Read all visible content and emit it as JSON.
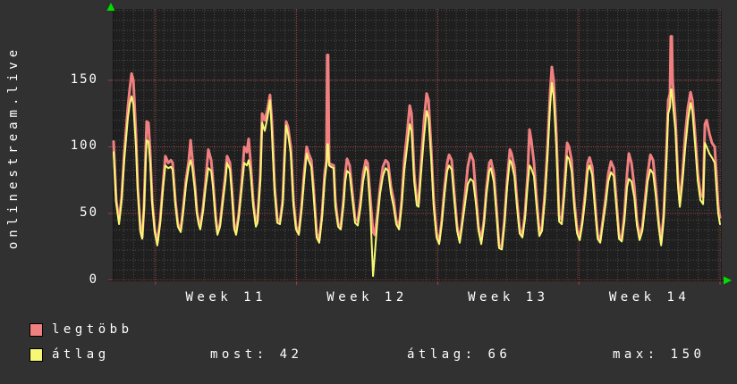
{
  "title": "onlinestream.live",
  "colors": {
    "background": "#313131",
    "plot_background": "#1f1f1f",
    "grid_minor": "#4d4d4d",
    "grid_major": "#9b4040",
    "axis": "#151515",
    "arrow": "#00dd00",
    "text": "#ffffff",
    "legtobb": "#f08080",
    "atlag": "#f7f774"
  },
  "legend": [
    {
      "label": "legtöbb",
      "color": "#f08080"
    },
    {
      "label": "átlag",
      "color": "#f7f774"
    }
  ],
  "stats": [
    {
      "label": "most",
      "value": "42",
      "text": "most: 42"
    },
    {
      "label": "átlag",
      "value": "66",
      "text": "átlag: 66"
    },
    {
      "label": "max",
      "value": "150",
      "text": "max: 150"
    }
  ],
  "chart_data": {
    "type": "line",
    "title": "onlinestream.live",
    "x_unit": "days",
    "x_range_days": [
      0,
      30.08
    ],
    "week_boundaries_days": [
      2.08,
      9.08,
      16.08,
      23.08,
      30.08
    ],
    "x_tick_labels": [
      "Week 11",
      "Week 12",
      "Week 13",
      "Week 14"
    ],
    "y_ticks": [
      0,
      50,
      100,
      150
    ],
    "y_tick_labels": [
      "0",
      "50",
      "100",
      "150"
    ],
    "ylim": [
      0,
      203
    ],
    "grid": {
      "minor_x_days": 0.5,
      "minor_y": 7.5,
      "major_y": 50,
      "minor_on": true
    },
    "legend_position": "bottom-left",
    "series_names": [
      "legtöbb",
      "átlag"
    ],
    "points_format": "[day, legtobb, atlag]",
    "points": [
      [
        0,
        104,
        96
      ],
      [
        0.13,
        60,
        58
      ],
      [
        0.27,
        45,
        42
      ],
      [
        0.4,
        62,
        60
      ],
      [
        0.53,
        95,
        90
      ],
      [
        0.71,
        130,
        122
      ],
      [
        0.8,
        143,
        132
      ],
      [
        0.89,
        155,
        138
      ],
      [
        0.98,
        150,
        132
      ],
      [
        1.11,
        110,
        100
      ],
      [
        1.2,
        70,
        68
      ],
      [
        1.33,
        38,
        36
      ],
      [
        1.42,
        32,
        31
      ],
      [
        1.51,
        55,
        53
      ],
      [
        1.6,
        100,
        92
      ],
      [
        1.64,
        119,
        105
      ],
      [
        1.73,
        118,
        104
      ],
      [
        1.82,
        95,
        88
      ],
      [
        1.91,
        60,
        58
      ],
      [
        2.04,
        38,
        36
      ],
      [
        2.17,
        28,
        26
      ],
      [
        2.31,
        45,
        43
      ],
      [
        2.44,
        70,
        67
      ],
      [
        2.57,
        93,
        86
      ],
      [
        2.71,
        88,
        84
      ],
      [
        2.84,
        90,
        85
      ],
      [
        2.93,
        88,
        83
      ],
      [
        3.06,
        60,
        57
      ],
      [
        3.19,
        42,
        40
      ],
      [
        3.33,
        38,
        36
      ],
      [
        3.46,
        55,
        52
      ],
      [
        3.59,
        75,
        71
      ],
      [
        3.73,
        90,
        85
      ],
      [
        3.82,
        105,
        90
      ],
      [
        3.9,
        92,
        85
      ],
      [
        4.04,
        70,
        66
      ],
      [
        4.13,
        52,
        50
      ],
      [
        4.22,
        44,
        42
      ],
      [
        4.3,
        40,
        38
      ],
      [
        4.44,
        55,
        52
      ],
      [
        4.57,
        75,
        70
      ],
      [
        4.7,
        98,
        84
      ],
      [
        4.84,
        90,
        82
      ],
      [
        4.93,
        75,
        70
      ],
      [
        5.06,
        48,
        45
      ],
      [
        5.15,
        36,
        34
      ],
      [
        5.28,
        42,
        40
      ],
      [
        5.41,
        60,
        57
      ],
      [
        5.55,
        80,
        75
      ],
      [
        5.63,
        93,
        88
      ],
      [
        5.77,
        88,
        83
      ],
      [
        5.86,
        70,
        66
      ],
      [
        5.99,
        40,
        38
      ],
      [
        6.08,
        36,
        34
      ],
      [
        6.21,
        50,
        47
      ],
      [
        6.35,
        72,
        68
      ],
      [
        6.48,
        100,
        88
      ],
      [
        6.61,
        96,
        86
      ],
      [
        6.7,
        106,
        90
      ],
      [
        6.79,
        90,
        82
      ],
      [
        6.92,
        60,
        56
      ],
      [
        7.06,
        42,
        40
      ],
      [
        7.14,
        45,
        43
      ],
      [
        7.28,
        80,
        75
      ],
      [
        7.37,
        125,
        118
      ],
      [
        7.5,
        120,
        112
      ],
      [
        7.63,
        128,
        122
      ],
      [
        7.76,
        139,
        135
      ],
      [
        7.85,
        120,
        112
      ],
      [
        7.99,
        70,
        65
      ],
      [
        8.12,
        46,
        43
      ],
      [
        8.25,
        44,
        42
      ],
      [
        8.39,
        60,
        57
      ],
      [
        8.47,
        90,
        85
      ],
      [
        8.56,
        119,
        116
      ],
      [
        8.65,
        115,
        110
      ],
      [
        8.79,
        100,
        95
      ],
      [
        8.92,
        60,
        56
      ],
      [
        9.05,
        40,
        38
      ],
      [
        9.19,
        36,
        34
      ],
      [
        9.32,
        55,
        52
      ],
      [
        9.45,
        80,
        75
      ],
      [
        9.58,
        100,
        95
      ],
      [
        9.67,
        95,
        90
      ],
      [
        9.81,
        90,
        85
      ],
      [
        9.94,
        65,
        60
      ],
      [
        10.07,
        35,
        32
      ],
      [
        10.2,
        30,
        28
      ],
      [
        10.34,
        50,
        47
      ],
      [
        10.47,
        80,
        75
      ],
      [
        10.56,
        90,
        86
      ],
      [
        10.6,
        169,
        102
      ],
      [
        10.64,
        169,
        102
      ],
      [
        10.69,
        88,
        86
      ],
      [
        10.78,
        87,
        85
      ],
      [
        10.92,
        86,
        84
      ],
      [
        11,
        60,
        55
      ],
      [
        11.14,
        42,
        40
      ],
      [
        11.27,
        40,
        38
      ],
      [
        11.4,
        60,
        56
      ],
      [
        11.49,
        80,
        74
      ],
      [
        11.58,
        91,
        82
      ],
      [
        11.71,
        86,
        80
      ],
      [
        11.85,
        65,
        60
      ],
      [
        11.98,
        46,
        43
      ],
      [
        12.11,
        44,
        41
      ],
      [
        12.25,
        60,
        55
      ],
      [
        12.38,
        80,
        74
      ],
      [
        12.51,
        90,
        85
      ],
      [
        12.6,
        88,
        82
      ],
      [
        12.74,
        60,
        50
      ],
      [
        12.87,
        36,
        3
      ],
      [
        12.96,
        34,
        20
      ],
      [
        13.09,
        50,
        45
      ],
      [
        13.22,
        70,
        65
      ],
      [
        13.36,
        85,
        78
      ],
      [
        13.49,
        90,
        84
      ],
      [
        13.62,
        88,
        82
      ],
      [
        13.76,
        70,
        65
      ],
      [
        13.89,
        60,
        55
      ],
      [
        14.02,
        45,
        42
      ],
      [
        14.16,
        40,
        38
      ],
      [
        14.29,
        60,
        56
      ],
      [
        14.42,
        90,
        82
      ],
      [
        14.56,
        110,
        100
      ],
      [
        14.69,
        131,
        117
      ],
      [
        14.78,
        125,
        112
      ],
      [
        14.91,
        80,
        74
      ],
      [
        15.04,
        60,
        56
      ],
      [
        15.13,
        58,
        55
      ],
      [
        15.26,
        90,
        82
      ],
      [
        15.4,
        120,
        108
      ],
      [
        15.53,
        140,
        127
      ],
      [
        15.62,
        135,
        122
      ],
      [
        15.75,
        100,
        92
      ],
      [
        15.88,
        60,
        55
      ],
      [
        16.02,
        35,
        32
      ],
      [
        16.15,
        29,
        27
      ],
      [
        16.28,
        45,
        42
      ],
      [
        16.42,
        70,
        65
      ],
      [
        16.55,
        88,
        82
      ],
      [
        16.64,
        94,
        86
      ],
      [
        16.77,
        90,
        83
      ],
      [
        16.9,
        65,
        60
      ],
      [
        17.04,
        40,
        37
      ],
      [
        17.17,
        30,
        28
      ],
      [
        17.3,
        45,
        42
      ],
      [
        17.44,
        65,
        58
      ],
      [
        17.57,
        85,
        72
      ],
      [
        17.7,
        95,
        76
      ],
      [
        17.84,
        90,
        74
      ],
      [
        17.97,
        65,
        58
      ],
      [
        18.1,
        40,
        37
      ],
      [
        18.24,
        30,
        27
      ],
      [
        18.37,
        45,
        42
      ],
      [
        18.5,
        70,
        65
      ],
      [
        18.64,
        88,
        82
      ],
      [
        18.72,
        90,
        84
      ],
      [
        18.86,
        80,
        74
      ],
      [
        18.99,
        55,
        50
      ],
      [
        19.12,
        26,
        24
      ],
      [
        19.26,
        25,
        23
      ],
      [
        19.39,
        45,
        42
      ],
      [
        19.52,
        75,
        70
      ],
      [
        19.66,
        98,
        90
      ],
      [
        19.74,
        95,
        88
      ],
      [
        19.88,
        85,
        78
      ],
      [
        20.01,
        60,
        55
      ],
      [
        20.14,
        38,
        35
      ],
      [
        20.28,
        34,
        32
      ],
      [
        20.41,
        50,
        46
      ],
      [
        20.54,
        80,
        72
      ],
      [
        20.63,
        113,
        86
      ],
      [
        20.72,
        105,
        84
      ],
      [
        20.85,
        88,
        78
      ],
      [
        20.99,
        60,
        54
      ],
      [
        21.12,
        36,
        33
      ],
      [
        21.25,
        40,
        37
      ],
      [
        21.39,
        65,
        60
      ],
      [
        21.52,
        100,
        92
      ],
      [
        21.65,
        140,
        130
      ],
      [
        21.74,
        160,
        148
      ],
      [
        21.83,
        150,
        138
      ],
      [
        21.96,
        110,
        100
      ],
      [
        22.1,
        48,
        44
      ],
      [
        22.23,
        45,
        42
      ],
      [
        22.36,
        70,
        64
      ],
      [
        22.5,
        103,
        93
      ],
      [
        22.59,
        100,
        91
      ],
      [
        22.72,
        90,
        82
      ],
      [
        22.85,
        60,
        55
      ],
      [
        22.99,
        38,
        35
      ],
      [
        23.12,
        32,
        30
      ],
      [
        23.25,
        45,
        42
      ],
      [
        23.39,
        65,
        60
      ],
      [
        23.52,
        88,
        82
      ],
      [
        23.61,
        92,
        86
      ],
      [
        23.74,
        85,
        79
      ],
      [
        23.87,
        60,
        55
      ],
      [
        24.01,
        34,
        31
      ],
      [
        24.14,
        30,
        28
      ],
      [
        24.27,
        45,
        42
      ],
      [
        24.41,
        62,
        57
      ],
      [
        24.54,
        80,
        74
      ],
      [
        24.67,
        89,
        81
      ],
      [
        24.81,
        84,
        78
      ],
      [
        24.94,
        60,
        55
      ],
      [
        25.07,
        34,
        31
      ],
      [
        25.21,
        31,
        29
      ],
      [
        25.34,
        50,
        45
      ],
      [
        25.47,
        80,
        70
      ],
      [
        25.56,
        95,
        76
      ],
      [
        25.69,
        88,
        74
      ],
      [
        25.83,
        70,
        62
      ],
      [
        25.96,
        45,
        41
      ],
      [
        26.09,
        33,
        30
      ],
      [
        26.23,
        40,
        37
      ],
      [
        26.36,
        60,
        55
      ],
      [
        26.49,
        80,
        74
      ],
      [
        26.63,
        94,
        83
      ],
      [
        26.76,
        90,
        80
      ],
      [
        26.89,
        70,
        64
      ],
      [
        27.03,
        45,
        41
      ],
      [
        27.16,
        28,
        26
      ],
      [
        27.29,
        50,
        46
      ],
      [
        27.43,
        100,
        92
      ],
      [
        27.51,
        135,
        125
      ],
      [
        27.6,
        140,
        130
      ],
      [
        27.64,
        183,
        143
      ],
      [
        27.69,
        183,
        143
      ],
      [
        27.73,
        150,
        135
      ],
      [
        27.87,
        120,
        112
      ],
      [
        28,
        75,
        70
      ],
      [
        28.09,
        58,
        55
      ],
      [
        28.22,
        80,
        74
      ],
      [
        28.36,
        110,
        100
      ],
      [
        28.49,
        130,
        120
      ],
      [
        28.62,
        141,
        133
      ],
      [
        28.71,
        135,
        127
      ],
      [
        28.84,
        110,
        102
      ],
      [
        28.98,
        80,
        74
      ],
      [
        29.11,
        65,
        60
      ],
      [
        29.24,
        62,
        57
      ],
      [
        29.33,
        117,
        103
      ],
      [
        29.42,
        120,
        100
      ],
      [
        29.55,
        110,
        95
      ],
      [
        29.68,
        103,
        92
      ],
      [
        29.82,
        100,
        88
      ],
      [
        29.9,
        80,
        70
      ],
      [
        29.99,
        55,
        50
      ],
      [
        30.08,
        47,
        42
      ]
    ]
  }
}
